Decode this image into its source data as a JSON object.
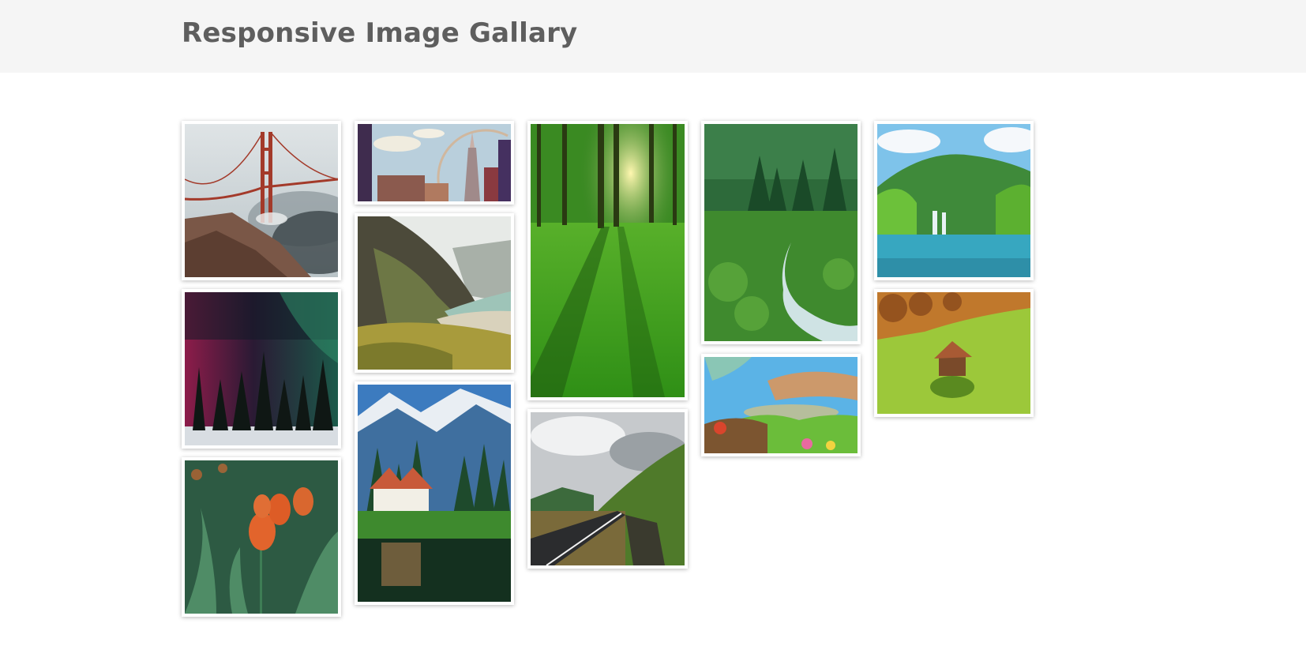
{
  "header": {
    "title": "Responsive Image Gallary"
  },
  "gallery": {
    "images": [
      {
        "icon": "golden-gate-bridge-photo"
      },
      {
        "icon": "aurora-forest-photo"
      },
      {
        "icon": "orange-tulips-photo"
      },
      {
        "icon": "city-skyline-rainbow-photo"
      },
      {
        "icon": "mountain-beach-photo"
      },
      {
        "icon": "lake-house-mountains-photo"
      },
      {
        "icon": "sunlit-forest-photo"
      },
      {
        "icon": "mountain-road-photo"
      },
      {
        "icon": "forest-stream-photo"
      },
      {
        "icon": "cartoon-meadow-photo"
      },
      {
        "icon": "waterfall-lake-photo"
      },
      {
        "icon": "hut-on-meadow-photo"
      }
    ]
  }
}
